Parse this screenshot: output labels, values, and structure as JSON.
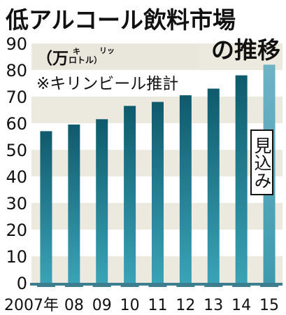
{
  "title_line1": "低アルコール飲料市場",
  "title_line2": "の推移",
  "unit_open": "（万",
  "unit_ruby_1": "キ",
  "unit_ruby_2": "リッ",
  "unit_ruby_base": "ロトル）",
  "note": "※キリンビール推計",
  "estimate_label": "見込み",
  "colors": {
    "bar_top": "#0f5a6c",
    "bar_bottom": "#3aa3b6",
    "estimate_bar_top": "#6fb3c7",
    "estimate_bar_bottom": "#3f9aae",
    "band": "#ece9df",
    "axis": "#3c7e8f"
  },
  "chart_data": {
    "type": "bar",
    "categories": [
      "2007年",
      "08",
      "09",
      "10",
      "11",
      "12",
      "13",
      "14",
      "15"
    ],
    "values": [
      57,
      59.5,
      61.5,
      66.5,
      68,
      70.5,
      73,
      78,
      82
    ],
    "estimated": [
      false,
      false,
      false,
      false,
      false,
      false,
      false,
      false,
      true
    ],
    "ylim": [
      0,
      90
    ],
    "yticks": [
      0,
      10,
      20,
      30,
      40,
      50,
      60,
      70,
      80,
      90
    ],
    "grid": "alternating horizontal bands"
  }
}
